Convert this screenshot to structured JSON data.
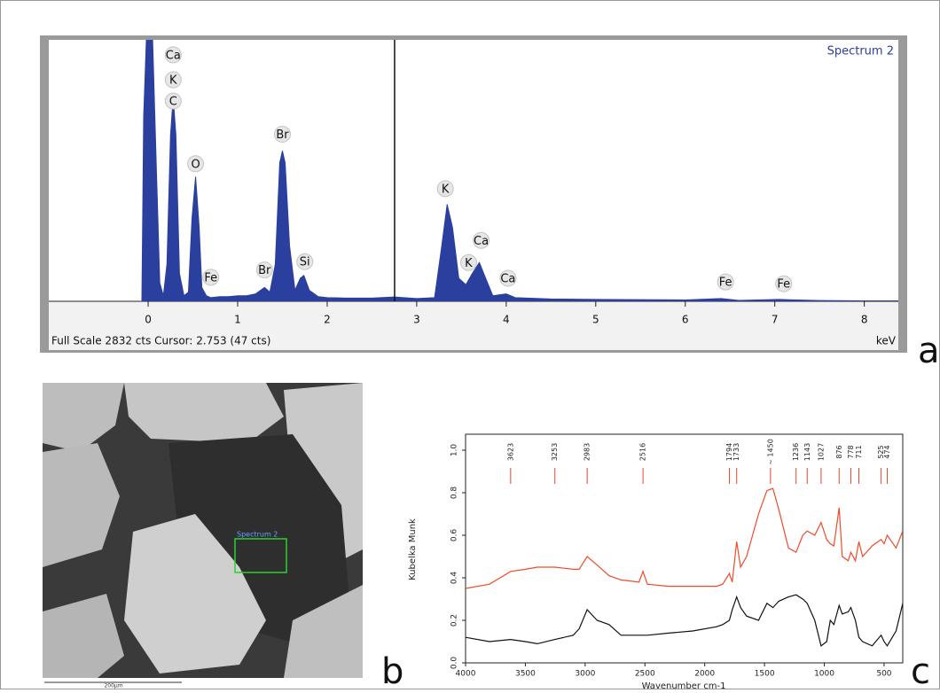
{
  "panel_labels": [
    "a",
    "b",
    "c"
  ],
  "sem_image": {
    "label": "Spectrum 2",
    "scale_bar": "200µm"
  },
  "chart_data": [
    {
      "type": "area",
      "title": "Spectrum 2",
      "footer": "Full Scale 2832 cts Cursor: 2.753  (47 cts)",
      "x_label": "keV",
      "color": "#2b3f9e",
      "cursor": 2.753,
      "xlim": [
        -1.11,
        8.38
      ],
      "ylim": [
        0,
        2832
      ],
      "xticks": [
        0,
        1,
        2,
        3,
        4,
        5,
        6,
        7,
        8
      ],
      "x": [
        -0.1,
        -0.07,
        -0.05,
        -0.02,
        0,
        0.05,
        0.09,
        0.13,
        0.17,
        0.21,
        0.25,
        0.28,
        0.31,
        0.35,
        0.4,
        0.45,
        0.49,
        0.53,
        0.57,
        0.6,
        0.65,
        0.7,
        0.8,
        0.9,
        1.0,
        1.1,
        1.2,
        1.3,
        1.36,
        1.42,
        1.47,
        1.5,
        1.53,
        1.58,
        1.64,
        1.7,
        1.74,
        1.8,
        1.9,
        2.0,
        2.2,
        2.5,
        2.75,
        3.0,
        3.2,
        3.28,
        3.34,
        3.4,
        3.47,
        3.55,
        3.62,
        3.7,
        3.77,
        3.85,
        4.0,
        4.1,
        4.5,
        5.0,
        6.0,
        6.4,
        6.6,
        7.05,
        7.5,
        8.0,
        8.38
      ],
      "values": [
        0,
        0,
        2000,
        2832,
        2832,
        2832,
        1500,
        200,
        60,
        400,
        1800,
        2210,
        1800,
        300,
        60,
        100,
        900,
        1350,
        800,
        150,
        60,
        40,
        50,
        50,
        60,
        60,
        80,
        150,
        100,
        400,
        1500,
        1630,
        1500,
        600,
        120,
        250,
        280,
        120,
        50,
        40,
        35,
        35,
        47,
        30,
        40,
        600,
        1050,
        800,
        250,
        180,
        300,
        420,
        250,
        60,
        80,
        40,
        25,
        20,
        15,
        30,
        10,
        20,
        8,
        5,
        5
      ],
      "annotations": [
        {
          "text": "Ca",
          "x": 0.28,
          "y": 2670
        },
        {
          "text": "K",
          "x": 0.28,
          "y": 2400
        },
        {
          "text": "C",
          "x": 0.28,
          "y": 2170
        },
        {
          "text": "O",
          "x": 0.53,
          "y": 1490
        },
        {
          "text": "Fe",
          "x": 0.7,
          "y": 260
        },
        {
          "text": "Br",
          "x": 1.3,
          "y": 340
        },
        {
          "text": "Br",
          "x": 1.5,
          "y": 1810
        },
        {
          "text": "Si",
          "x": 1.75,
          "y": 430
        },
        {
          "text": "K",
          "x": 3.32,
          "y": 1220
        },
        {
          "text": "Ca",
          "x": 3.72,
          "y": 660
        },
        {
          "text": "K",
          "x": 3.58,
          "y": 420
        },
        {
          "text": "Ca",
          "x": 4.02,
          "y": 250
        },
        {
          "text": "Fe",
          "x": 6.45,
          "y": 210
        },
        {
          "text": "Fe",
          "x": 7.1,
          "y": 190
        }
      ]
    },
    {
      "type": "line",
      "x_label": "Wavenumber cm-1",
      "y_label": "Kubelka Munk",
      "xlim": [
        4000,
        344
      ],
      "ylim": [
        0,
        1.075
      ],
      "xticks": [
        4000,
        3500,
        3000,
        2500,
        2000,
        1500,
        1000,
        500
      ],
      "yticks": [
        {
          "value": 0,
          "label": "0.0"
        },
        0.2,
        0.4,
        0.6,
        0.8,
        {
          "value": 1,
          "label": "1.0"
        }
      ],
      "marker_color": "#e8452c",
      "markers": [
        3623,
        3253,
        2983,
        2516,
        1794,
        1733,
        {
          "value": 1450,
          "label": "~ 1450"
        },
        1236,
        1143,
        1027,
        876,
        778,
        711,
        525,
        474
      ],
      "x": [
        4000,
        3800,
        3623,
        3500,
        3400,
        3253,
        3100,
        3050,
        2983,
        2900,
        2800,
        2700,
        2550,
        2516,
        2480,
        2300,
        2100,
        1900,
        1850,
        1794,
        1770,
        1733,
        1700,
        1650,
        1550,
        1480,
        1430,
        1380,
        1300,
        1236,
        1180,
        1143,
        1080,
        1027,
        980,
        950,
        920,
        876,
        850,
        800,
        778,
        740,
        711,
        680,
        600,
        525,
        500,
        474,
        400,
        344
      ],
      "series": [
        {
          "color": "#f04a2a",
          "values": [
            0.35,
            0.37,
            0.43,
            0.44,
            0.45,
            0.45,
            0.44,
            0.44,
            0.5,
            0.46,
            0.41,
            0.39,
            0.38,
            0.43,
            0.37,
            0.36,
            0.36,
            0.36,
            0.37,
            0.42,
            0.38,
            0.57,
            0.45,
            0.5,
            0.7,
            0.81,
            0.82,
            0.72,
            0.54,
            0.52,
            0.6,
            0.62,
            0.6,
            0.66,
            0.58,
            0.56,
            0.55,
            0.73,
            0.5,
            0.48,
            0.52,
            0.48,
            0.57,
            0.5,
            0.55,
            0.58,
            0.56,
            0.6,
            0.54,
            0.62
          ]
        },
        {
          "color": "#111111",
          "values": [
            0.12,
            0.1,
            0.11,
            0.1,
            0.09,
            0.11,
            0.13,
            0.16,
            0.25,
            0.2,
            0.18,
            0.13,
            0.13,
            0.13,
            0.13,
            0.14,
            0.15,
            0.17,
            0.18,
            0.2,
            0.25,
            0.31,
            0.26,
            0.22,
            0.2,
            0.28,
            0.26,
            0.29,
            0.31,
            0.32,
            0.3,
            0.28,
            0.2,
            0.08,
            0.1,
            0.2,
            0.18,
            0.27,
            0.23,
            0.24,
            0.26,
            0.2,
            0.12,
            0.1,
            0.08,
            0.13,
            0.1,
            0.08,
            0.15,
            0.28
          ]
        }
      ]
    }
  ]
}
